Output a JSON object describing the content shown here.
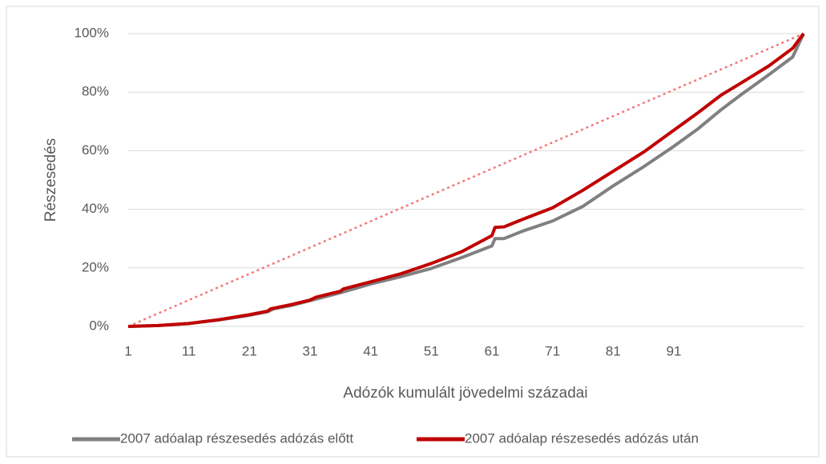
{
  "chart_data": {
    "type": "line",
    "y_label": "Részesedés",
    "x_label": "Adózók kumulált jövedelmi századai",
    "xlim": [
      1,
      112.4
    ],
    "xticks": [
      1,
      11,
      21,
      31,
      41,
      51,
      61,
      71,
      81,
      91
    ],
    "ylim": [
      0,
      100
    ],
    "yticks": [
      {
        "value": 0,
        "label": "0%"
      },
      {
        "value": 20,
        "label": "20%"
      },
      {
        "value": 40,
        "label": "40%"
      },
      {
        "value": 60,
        "label": "60%"
      },
      {
        "value": 80,
        "label": "80%"
      },
      {
        "value": 100,
        "label": "100%"
      }
    ],
    "grid": true,
    "legend": "bottom",
    "series": [
      {
        "name": "2007 adóalap részesedés adózás előtt",
        "color": "#808080",
        "x": [
          1,
          6,
          11,
          16,
          21,
          24,
          25,
          28,
          31,
          36,
          41,
          46,
          51,
          56,
          61,
          61.5,
          63,
          66,
          71,
          76,
          81,
          86,
          91,
          95,
          98.8,
          102,
          106.7,
          110.6,
          112.4
        ],
        "values": [
          0,
          0.3,
          1,
          2.2,
          3.8,
          5,
          6,
          7.2,
          8.8,
          11.5,
          14.5,
          17,
          19.8,
          23.5,
          27.5,
          30,
          30,
          32.5,
          36,
          41,
          48,
          54.5,
          61.5,
          67.5,
          74,
          79,
          86,
          92,
          100
        ]
      },
      {
        "name": "2007 adóalap részesedés adózás után",
        "color": "#c00000",
        "x": [
          1,
          6,
          11,
          16,
          21,
          24,
          24.5,
          28,
          31,
          32,
          36,
          36.5,
          41,
          46,
          51,
          56,
          61,
          61.5,
          63,
          66,
          71,
          76,
          81,
          86,
          91,
          95,
          98.8,
          102,
          106.7,
          110.6,
          112.4
        ],
        "values": [
          0,
          0.3,
          1,
          2.3,
          4,
          5.2,
          6,
          7.5,
          9,
          10,
          12,
          12.8,
          15.2,
          18,
          21.5,
          25.5,
          31,
          33.8,
          34,
          36.5,
          40.5,
          46.5,
          53,
          59.5,
          67,
          73,
          79,
          83,
          89,
          95,
          100
        ]
      }
    ],
    "reference_line": {
      "x": [
        1,
        112.4
      ],
      "values": [
        0,
        100
      ],
      "color": "#f4777a",
      "dashed": true
    }
  }
}
